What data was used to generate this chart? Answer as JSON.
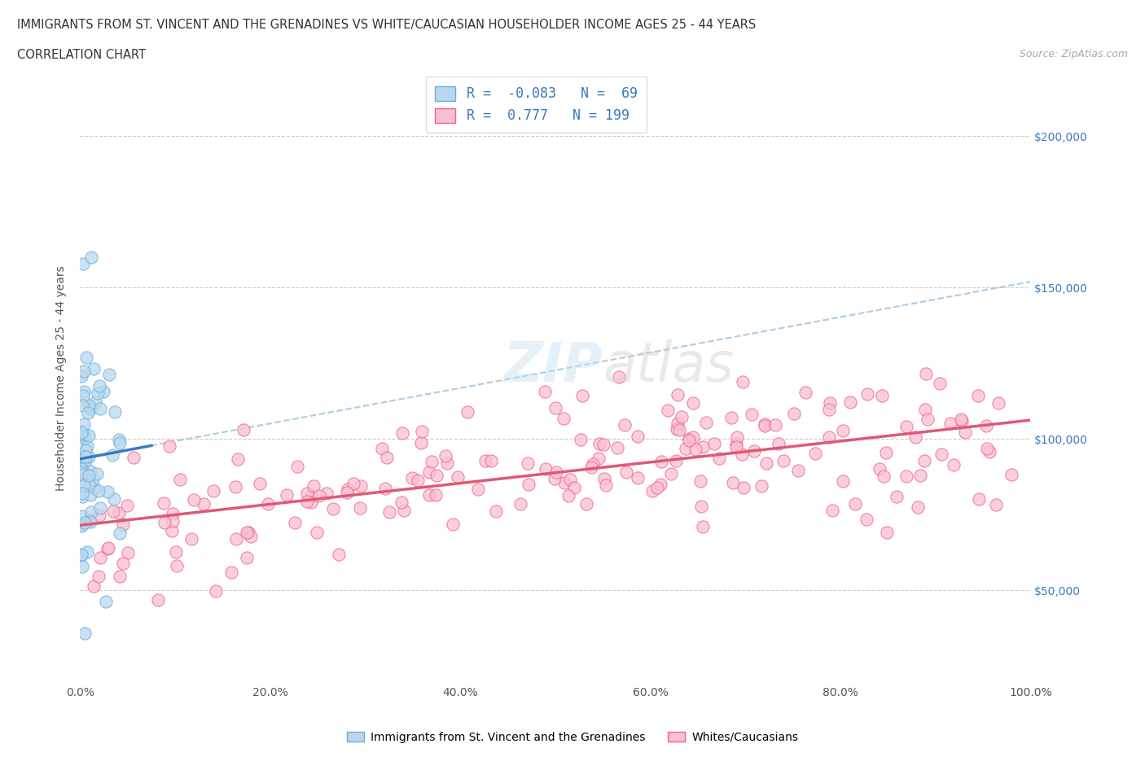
{
  "title_line1": "IMMIGRANTS FROM ST. VINCENT AND THE GRENADINES VS WHITE/CAUCASIAN HOUSEHOLDER INCOME AGES 25 - 44 YEARS",
  "title_line2": "CORRELATION CHART",
  "source_text": "Source: ZipAtlas.com",
  "ylabel": "Householder Income Ages 25 - 44 years",
  "xlim": [
    0.0,
    1.0
  ],
  "ylim": [
    20000,
    220000
  ],
  "xtick_labels": [
    "0.0%",
    "20.0%",
    "40.0%",
    "60.0%",
    "80.0%",
    "100.0%"
  ],
  "xtick_vals": [
    0.0,
    0.2,
    0.4,
    0.6,
    0.8,
    1.0
  ],
  "ytick_vals": [
    50000,
    100000,
    150000,
    200000
  ],
  "ytick_labels": [
    "$50,000",
    "$100,000",
    "$150,000",
    "$200,000"
  ],
  "blue_color": "#a8cce8",
  "pink_color": "#f4b8c8",
  "blue_dot_edge": "#6aaed6",
  "pink_dot_edge": "#f06090",
  "trendline_blue_color": "#3a7abf",
  "trendline_pink_color": "#e05878",
  "trendline_dashed_color": "#a8cce8",
  "R_blue": -0.083,
  "N_blue": 69,
  "R_pink": 0.777,
  "N_pink": 199,
  "watermark": "ZIPatlas",
  "grid_color": "#cccccc",
  "title_color": "#333333",
  "ytick_right_color": "#3a7abf"
}
